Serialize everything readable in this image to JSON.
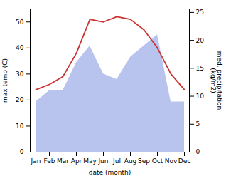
{
  "chart_data": {
    "type": "line",
    "categories": [
      "Jan",
      "Feb",
      "Mar",
      "Apr",
      "May",
      "Jun",
      "Jul",
      "Aug",
      "Sep",
      "Oct",
      "Nov",
      "Dec"
    ],
    "xlabel": "date (month)",
    "ylabel": "max temp (C)",
    "y2label": "med. precipitation\n(kg/m2)",
    "series": [
      {
        "type": "area",
        "axis": "y2",
        "color": "#b8c4ee",
        "values": [
          9,
          11,
          11,
          16,
          19,
          14,
          13,
          17,
          19,
          21,
          9,
          9
        ]
      },
      {
        "type": "line",
        "color": "#cc3333",
        "values": [
          24,
          26,
          29,
          38,
          51,
          50,
          52,
          51,
          47,
          40,
          30,
          24
        ]
      }
    ],
    "ylim": [
      0,
      55
    ],
    "yticks": [
      0,
      10,
      20,
      30,
      40,
      50
    ],
    "y2lim": [
      0,
      25.625
    ],
    "y2ticks": [
      0,
      5,
      10,
      15,
      20,
      25
    ],
    "grid": false
  }
}
